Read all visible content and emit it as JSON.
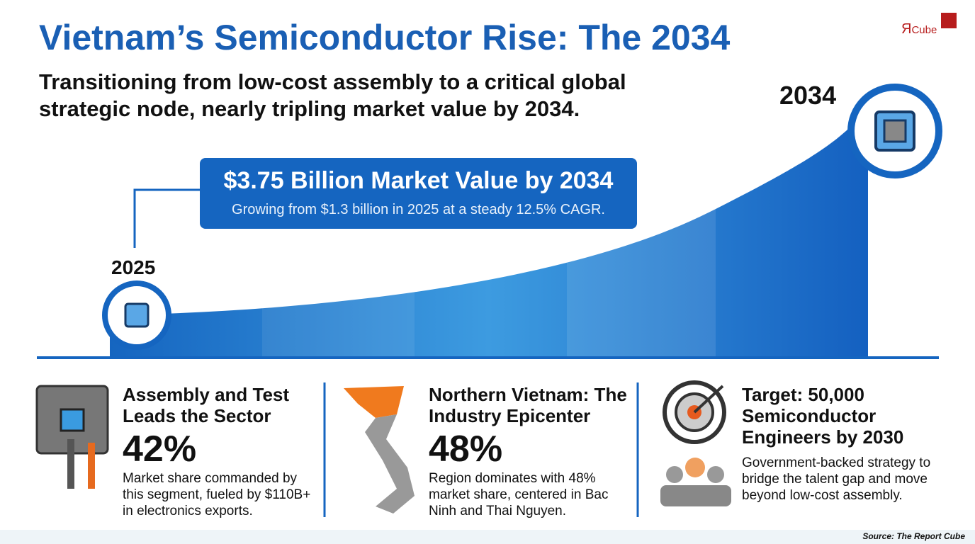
{
  "logo": {
    "mark": "Я",
    "text": "Cube"
  },
  "header": {
    "title": "Vietnam’s Semiconductor Rise: The 2034",
    "subtitle": "Transitioning from low-cost assembly to a critical global strategic node, nearly tripling market value by 2034."
  },
  "timeline": {
    "start_label": "2025",
    "end_label": "2034"
  },
  "callout": {
    "headline": "$3.75 Billion Market Value by 2034",
    "detail": "Growing from $1.3 billion in 2025 at a steady 12.5% CAGR."
  },
  "stats": [
    {
      "title": "Assembly and Test Leads the Sector",
      "value": "42%",
      "description": "Market share commanded by this segment, fueled by $110B+ in electronics exports."
    },
    {
      "title": "Northern Vietnam: The Industry Epicenter",
      "value": "48%",
      "description": "Region dominates with 48% market share, centered in Bac Ninh and Thai Nguyen."
    },
    {
      "title": "Target: 50,000 Semiconductor Engineers by 2030",
      "description": "Government-backed strategy to bridge the talent gap and move beyond low-cost assembly."
    }
  ],
  "source": "Source: The Report Cube"
}
